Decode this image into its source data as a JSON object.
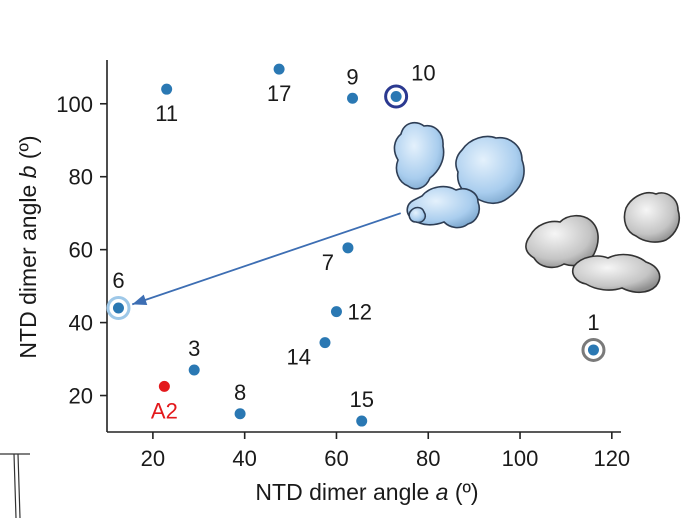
{
  "chart_data": {
    "type": "scatter",
    "xlabel_prefix": "NTD dimer angle ",
    "xlabel_var": "a",
    "xlabel_suffix": " (º)",
    "ylabel_prefix": "NTD dimer angle ",
    "ylabel_var": "b",
    "ylabel_suffix": " (º)",
    "xlim": [
      10,
      122
    ],
    "ylim": [
      10,
      112
    ],
    "xticks": [
      20,
      40,
      60,
      80,
      100,
      120
    ],
    "yticks": [
      20,
      40,
      60,
      80,
      100
    ],
    "grid": false,
    "points": [
      {
        "label": "11",
        "x": 23,
        "y": 104,
        "color": "#2a78b3",
        "label_pos": "below",
        "ring": null
      },
      {
        "label": "17",
        "x": 47.5,
        "y": 109.5,
        "color": "#2a78b3",
        "label_pos": "below",
        "ring": null
      },
      {
        "label": "9",
        "x": 63.5,
        "y": 101.5,
        "color": "#2a78b3",
        "label_pos": "above",
        "ring": null
      },
      {
        "label": "10",
        "x": 73,
        "y": 102,
        "color": "#2a78b3",
        "label_pos": "upper-right",
        "ring": "#2b3990"
      },
      {
        "label": "7",
        "x": 62.5,
        "y": 60.5,
        "color": "#2a78b3",
        "label_pos": "lower-left",
        "ring": null
      },
      {
        "label": "6",
        "x": 12.5,
        "y": 44,
        "color": "#2a78b3",
        "label_pos": "above",
        "ring": "#9ec8e8"
      },
      {
        "label": "12",
        "x": 60,
        "y": 43,
        "color": "#2a78b3",
        "label_pos": "right",
        "ring": null
      },
      {
        "label": "14",
        "x": 57.5,
        "y": 34.5,
        "color": "#2a78b3",
        "label_pos": "lower-left",
        "ring": null
      },
      {
        "label": "1",
        "x": 116,
        "y": 32.5,
        "color": "#2a78b3",
        "label_pos": "above",
        "ring": "#7a7a7a"
      },
      {
        "label": "3",
        "x": 29,
        "y": 27,
        "color": "#2a78b3",
        "label_pos": "above",
        "ring": null
      },
      {
        "label": "A2",
        "x": 22.5,
        "y": 22.5,
        "color": "#e3191c",
        "label_pos": "below",
        "ring": null
      },
      {
        "label": "8",
        "x": 39,
        "y": 15,
        "color": "#2a78b3",
        "label_pos": "above",
        "ring": null
      },
      {
        "label": "15",
        "x": 65.5,
        "y": 13,
        "color": "#2a78b3",
        "label_pos": "above",
        "ring": null
      }
    ],
    "arrow": {
      "from": [
        74,
        70
      ],
      "to": [
        15.5,
        45
      ],
      "color": "#3d6eb3"
    },
    "inset_structures": [
      {
        "name": "blue-dimer-structure",
        "color": "#b9d8f2",
        "near_point": "10"
      },
      {
        "name": "gray-dimer-structure",
        "color": "#c8c8c8",
        "near_point": "1"
      }
    ]
  }
}
